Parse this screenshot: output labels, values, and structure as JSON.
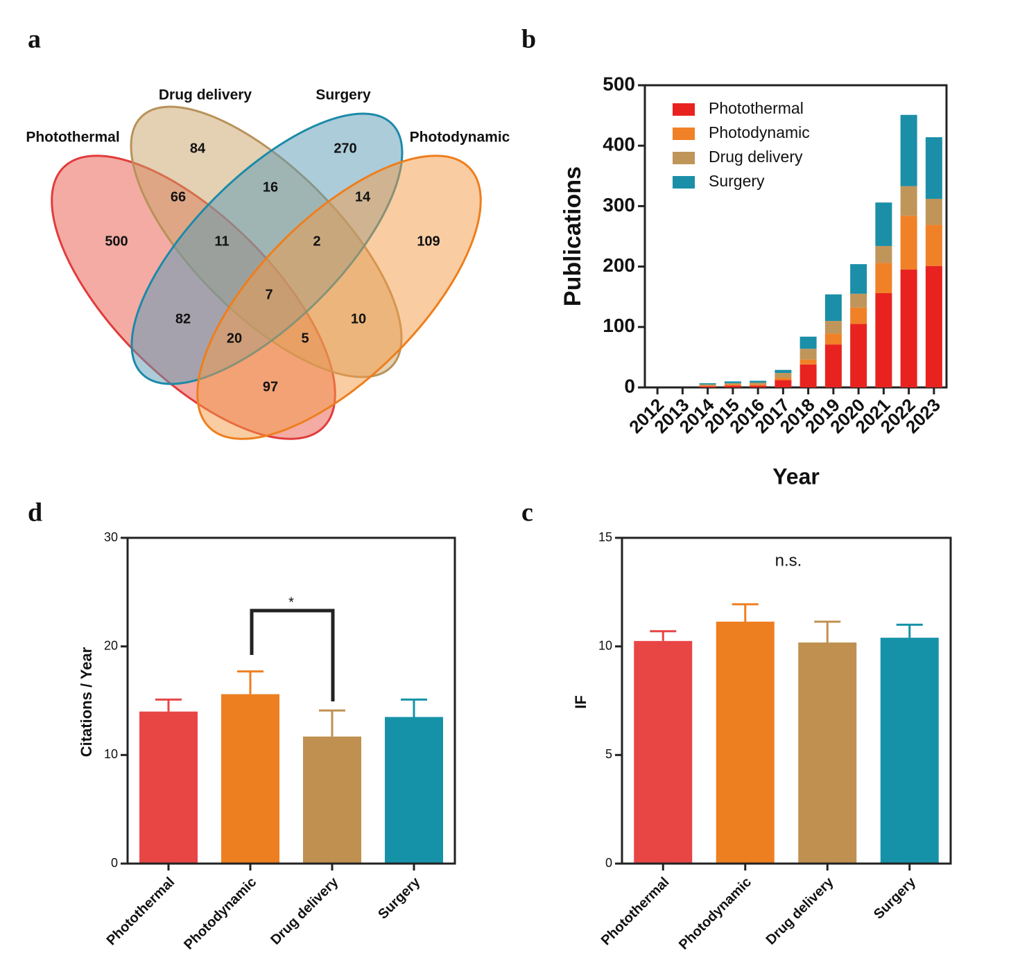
{
  "chart_data": [
    {
      "type": "venn",
      "panel_label": "a",
      "sets": [
        {
          "name": "Photothermal",
          "color": "#e8574a"
        },
        {
          "name": "Drug delivery",
          "color": "#c9a266"
        },
        {
          "name": "Surgery",
          "color": "#5a9ab5"
        },
        {
          "name": "Photodynamic",
          "color": "#f39a45"
        }
      ],
      "values": [
        500,
        84,
        270,
        109,
        66,
        16,
        14,
        11,
        2,
        7,
        82,
        10,
        20,
        5,
        97
      ]
    },
    {
      "type": "stacked_bar",
      "panel_label": "b",
      "x_label": "Year",
      "y_label": "Publications",
      "categories": [
        "2012",
        "2013",
        "2014",
        "2015",
        "2016",
        "2017",
        "2018",
        "2019",
        "2020",
        "2021",
        "2022",
        "2023"
      ],
      "series": [
        {
          "name": "Photothermal",
          "color": "#e8231f",
          "values": [
            0,
            0,
            2,
            3,
            3,
            12,
            38,
            71,
            105,
            156,
            195,
            201
          ]
        },
        {
          "name": "Photodynamic",
          "color": "#f08127",
          "values": [
            0,
            0,
            1,
            2,
            2,
            4,
            8,
            18,
            27,
            50,
            89,
            68
          ]
        },
        {
          "name": "Drug delivery",
          "color": "#c0955a",
          "values": [
            0,
            0,
            2,
            2,
            3,
            8,
            18,
            21,
            23,
            28,
            49,
            43
          ]
        },
        {
          "name": "Surgery",
          "color": "#1b8fa8",
          "values": [
            0,
            0,
            2,
            3,
            3,
            5,
            20,
            44,
            49,
            72,
            118,
            102
          ]
        }
      ],
      "ylim": [
        0,
        500
      ],
      "yticks": [
        0,
        100,
        200,
        300,
        400,
        500
      ],
      "legend": "upper left"
    },
    {
      "type": "bar",
      "panel_label": "d",
      "y_label": "Citations / Year",
      "categories": [
        "Photothermal",
        "Photodynamic",
        "Drug delivery",
        "Surgery"
      ],
      "values": [
        14.0,
        15.6,
        11.7,
        13.5
      ],
      "errors": [
        1.1,
        2.1,
        2.4,
        1.6
      ],
      "colors": [
        "#e84545",
        "#ee7f20",
        "#c09050",
        "#1692a8"
      ],
      "ylim": [
        0,
        30
      ],
      "yticks": [
        0,
        10,
        20,
        30
      ],
      "annotation": "*"
    },
    {
      "type": "bar",
      "panel_label": "c",
      "y_label": "IF",
      "categories": [
        "Photothermal",
        "Photodynamic",
        "Drug delivery",
        "Surgery"
      ],
      "values": [
        10.25,
        11.14,
        10.18,
        10.4
      ],
      "errors": [
        0.45,
        0.8,
        0.96,
        0.6
      ],
      "colors": [
        "#e84545",
        "#ee7f20",
        "#c09050",
        "#1692a8"
      ],
      "ylim": [
        0,
        15
      ],
      "yticks": [
        0,
        5,
        10,
        15
      ],
      "annotation": "n.s."
    }
  ]
}
